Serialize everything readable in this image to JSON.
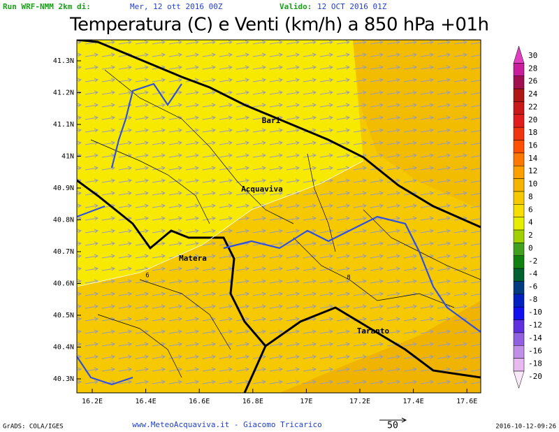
{
  "header": {
    "run_label": "Run WRF-NMM 2km di:",
    "run_date": "Mer, 12 ott 2016 00Z",
    "valid_label": "Valido:",
    "valid_date": "12 OCT 2016 01Z"
  },
  "title": "Temperatura (C) e Venti (km/h) a 850 hPa +01h",
  "lat_labels": [
    "41.3N",
    "41.2N",
    "41.1N",
    "41N",
    "40.9N",
    "40.8N",
    "40.7N",
    "40.6N",
    "40.5N",
    "40.4N",
    "40.3N"
  ],
  "lon_labels": [
    "16.2E",
    "16.4E",
    "16.6E",
    "16.8E",
    "17E",
    "17.2E",
    "17.4E",
    "17.6E"
  ],
  "cities": [
    "Bari",
    "Acquaviva",
    "Matera",
    "Taranto"
  ],
  "contour_labels": [
    "6",
    "8"
  ],
  "colorbar": [
    {
      "label": "30",
      "color": "#e040c0"
    },
    {
      "label": "28",
      "color": "#c81e9c"
    },
    {
      "label": "26",
      "color": "#a01050"
    },
    {
      "label": "24",
      "color": "#b01414"
    },
    {
      "label": "22",
      "color": "#c81818"
    },
    {
      "label": "20",
      "color": "#e01c1c"
    },
    {
      "label": "18",
      "color": "#f03410"
    },
    {
      "label": "16",
      "color": "#ff5000"
    },
    {
      "label": "14",
      "color": "#ff7800"
    },
    {
      "label": "12",
      "color": "#ffa000"
    },
    {
      "label": "10",
      "color": "#f5b400"
    },
    {
      "label": "8",
      "color": "#f5c800"
    },
    {
      "label": "6",
      "color": "#f5de00"
    },
    {
      "label": "4",
      "color": "#e6ee00"
    },
    {
      "label": "2",
      "color": "#a0d000"
    },
    {
      "label": "0",
      "color": "#40a020"
    },
    {
      "label": "-2",
      "color": "#108010"
    },
    {
      "label": "-4",
      "color": "#006030"
    },
    {
      "label": "-6",
      "color": "#003c80"
    },
    {
      "label": "-8",
      "color": "#0020c0"
    },
    {
      "label": "-10",
      "color": "#1010f0"
    },
    {
      "label": "-12",
      "color": "#6030e0"
    },
    {
      "label": "-14",
      "color": "#9060e0"
    },
    {
      "label": "-16",
      "color": "#c090e8"
    },
    {
      "label": "-18",
      "color": "#e8b8f0"
    },
    {
      "label": "-20",
      "color": "#f8e8f8"
    }
  ],
  "footer": {
    "left": "GrADS: COLA/IGES",
    "center": "www.MeteoAcquaviva.it - Giacomo Tricarico",
    "scale": "50",
    "right": "2016-10-12-09:26"
  }
}
